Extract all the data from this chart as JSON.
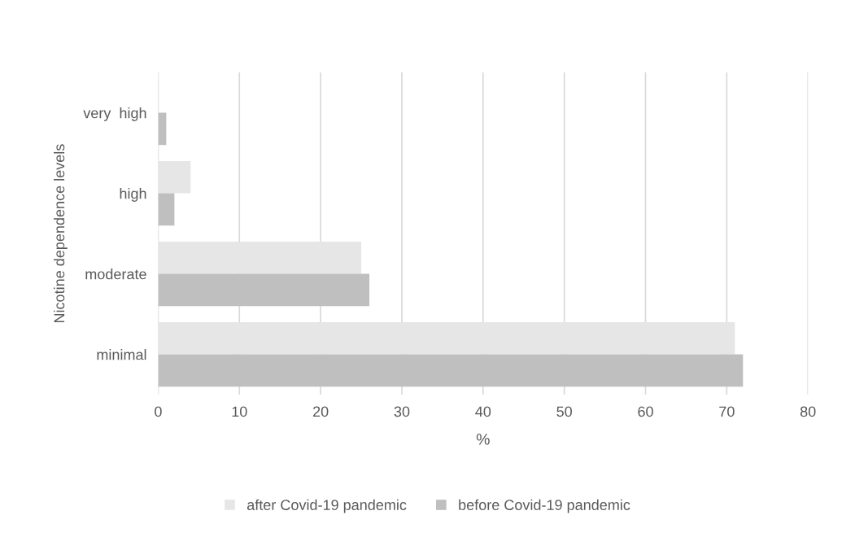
{
  "chart_data": {
    "type": "bar",
    "orientation": "horizontal",
    "xlabel": "%",
    "ylabel": "Nicotine dependence levels",
    "categories": [
      "very  high",
      "high",
      "moderate",
      "minimal"
    ],
    "series": [
      {
        "name": "after Covid-19 pandemic",
        "color": "#e6e6e6",
        "values": [
          0,
          4,
          25,
          71
        ]
      },
      {
        "name": "before Covid-19 pandemic",
        "color": "#bfbfbf",
        "values": [
          1,
          2,
          26,
          72
        ]
      }
    ],
    "xlim": [
      0,
      80
    ],
    "xticks": [
      0,
      10,
      20,
      30,
      40,
      50,
      60,
      70,
      80
    ],
    "grid": "x",
    "legend": "bottom"
  }
}
